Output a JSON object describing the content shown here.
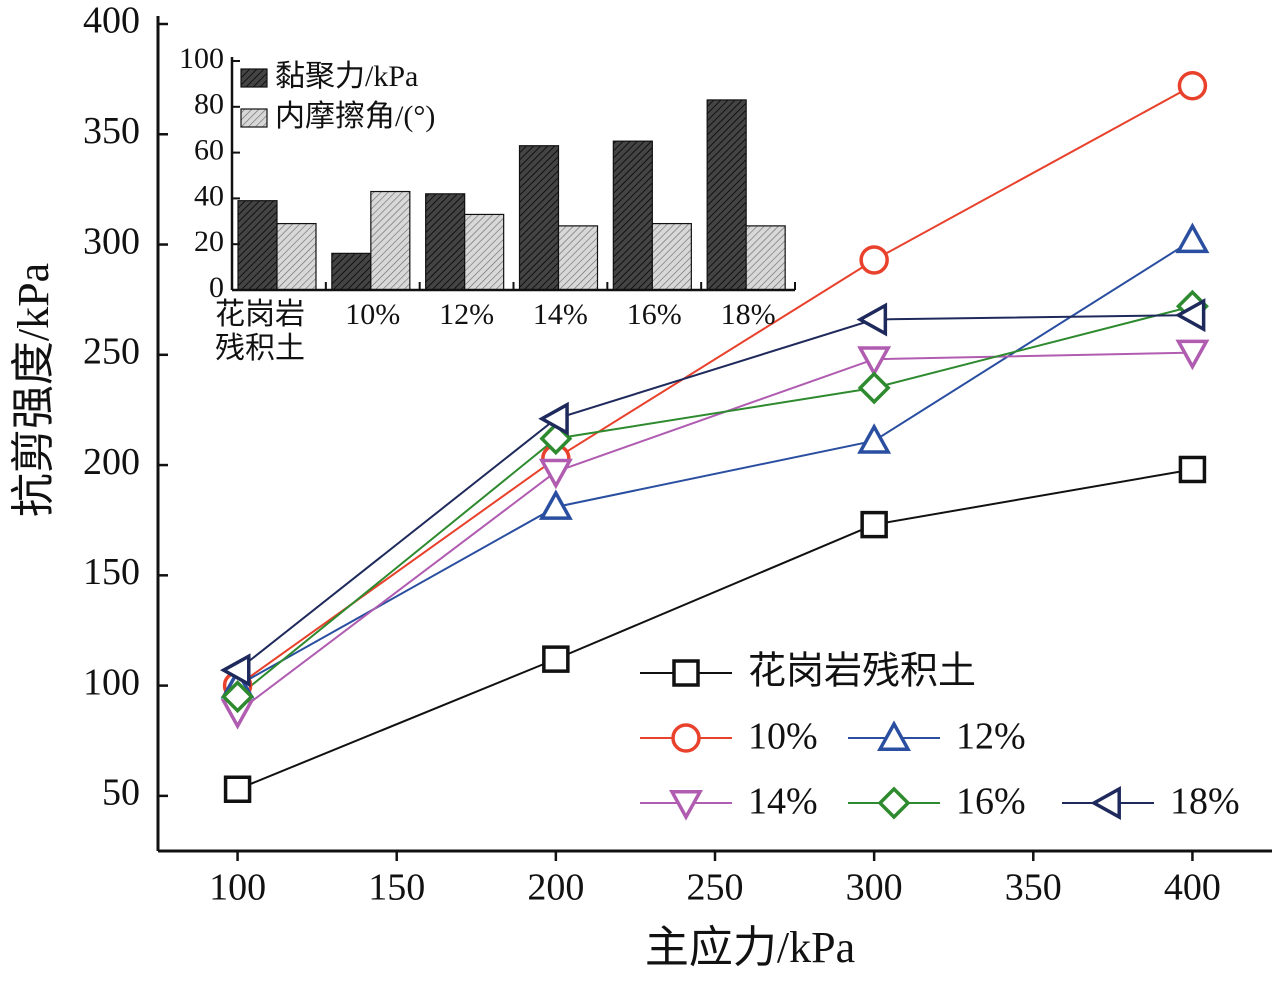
{
  "chart_data": [
    {
      "type": "line",
      "xlabel": "主应力/kPa",
      "ylabel": "抗剪强度/kPa",
      "x": [
        100,
        200,
        300,
        400
      ],
      "xlim": [
        75,
        425
      ],
      "xticks": [
        100,
        150,
        200,
        250,
        300,
        350,
        400
      ],
      "ylim": [
        25,
        400
      ],
      "yticks": [
        50,
        100,
        150,
        200,
        250,
        300,
        350,
        400
      ],
      "legend": "lower right",
      "series": [
        {
          "name": "花岗岩残积土",
          "color": "#111111",
          "marker": "square",
          "values": [
            53,
            112,
            173,
            198
          ]
        },
        {
          "name": "10%",
          "color": "#e8412c",
          "marker": "circle",
          "values": [
            100,
            203,
            293,
            372
          ]
        },
        {
          "name": "12%",
          "color": "#2a4fa0",
          "marker": "triangle-up",
          "values": [
            100,
            181,
            211,
            302
          ]
        },
        {
          "name": "14%",
          "color": "#b05cb0",
          "marker": "triangle-down",
          "values": [
            88,
            197,
            248,
            251
          ]
        },
        {
          "name": "16%",
          "color": "#2e8a2e",
          "marker": "diamond",
          "values": [
            95,
            212,
            235,
            272
          ]
        },
        {
          "name": "18%",
          "color": "#1f2a5c",
          "marker": "triangle-left",
          "values": [
            107,
            221,
            266,
            268
          ]
        }
      ]
    },
    {
      "type": "bar",
      "categories": [
        "花岗岩残积土",
        "10%",
        "12%",
        "14%",
        "16%",
        "18%"
      ],
      "ylim": [
        0,
        100
      ],
      "yticks": [
        0,
        20,
        40,
        60,
        80,
        100
      ],
      "legend": "upper left",
      "series": [
        {
          "name": "黏聚力/kPa",
          "color": "#444444",
          "values": [
            39,
            16,
            42,
            63,
            65,
            83
          ]
        },
        {
          "name": "内摩擦角/(°)",
          "color": "#d8d8d8",
          "values": [
            29,
            43,
            33,
            28,
            29,
            28
          ]
        }
      ]
    }
  ]
}
